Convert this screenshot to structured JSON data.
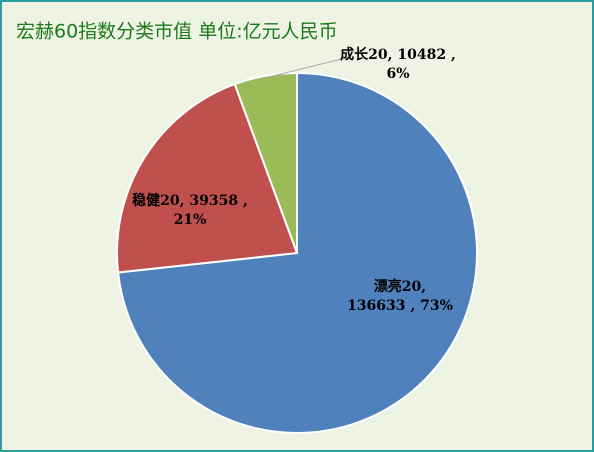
{
  "chart_data": {
    "type": "pie",
    "title": "宏赫60指数分类市值   单位:亿元人民币",
    "values": [
      136633,
      39358,
      10482
    ],
    "value_labels": [
      [
        "漂亮20,",
        "136633 , 73%"
      ],
      [
        "稳健20, 39358 ,",
        "21%"
      ],
      [
        "成长20, 10482 ,",
        "6%"
      ]
    ],
    "colors": [
      "#4f81bd",
      "#c0504d",
      "#9bbb59"
    ]
  }
}
